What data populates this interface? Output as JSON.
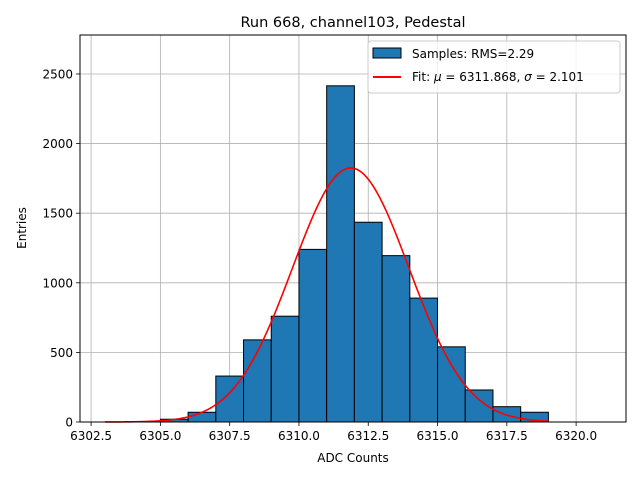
{
  "chart_data": {
    "type": "bar",
    "title": "Run 668, channel103, Pedestal",
    "xlabel": "ADC Counts",
    "ylabel": "Entries",
    "xlim": [
      6302.1,
      6321.8
    ],
    "ylim": [
      0,
      2780
    ],
    "xticks": [
      6302.5,
      6305.0,
      6307.5,
      6310.0,
      6312.5,
      6315.0,
      6317.5,
      6320.0
    ],
    "xtick_labels": [
      "6302.5",
      "6305.0",
      "6307.5",
      "6310.0",
      "6312.5",
      "6315.0",
      "6317.5",
      "6320.0"
    ],
    "yticks": [
      0,
      500,
      1000,
      1500,
      2000,
      2500
    ],
    "ytick_labels": [
      "0",
      "500",
      "1000",
      "1500",
      "2000",
      "2500"
    ],
    "grid": true,
    "legend_position": "top-right",
    "histogram": {
      "name": "Samples: RMS=2.29",
      "color": "#1f77b4",
      "edge_color": "#000000",
      "bins": [
        {
          "x0": 6305,
          "x1": 6306,
          "value": 20
        },
        {
          "x0": 6306,
          "x1": 6307,
          "value": 70
        },
        {
          "x0": 6307,
          "x1": 6308,
          "value": 330
        },
        {
          "x0": 6308,
          "x1": 6309,
          "value": 590
        },
        {
          "x0": 6309,
          "x1": 6310,
          "value": 760
        },
        {
          "x0": 6310,
          "x1": 6311,
          "value": 1240
        },
        {
          "x0": 6311,
          "x1": 6312,
          "value": 2415
        },
        {
          "x0": 6312,
          "x1": 6313,
          "value": 1435
        },
        {
          "x0": 6313,
          "x1": 6314,
          "value": 1195
        },
        {
          "x0": 6314,
          "x1": 6315,
          "value": 890
        },
        {
          "x0": 6315,
          "x1": 6316,
          "value": 540
        },
        {
          "x0": 6316,
          "x1": 6317,
          "value": 230
        },
        {
          "x0": 6317,
          "x1": 6318,
          "value": 110
        },
        {
          "x0": 6318,
          "x1": 6319,
          "value": 70
        }
      ]
    },
    "fit": {
      "name_prefix": "Fit: ",
      "name_mu": "μ",
      "name_mid": " = 6311.868, ",
      "name_sigma": "σ",
      "name_suffix": " = 2.101",
      "color": "#ff0000",
      "mu": 6311.868,
      "sigma": 2.101,
      "amplitude": 1825,
      "x_range": [
        6303,
        6319
      ]
    }
  }
}
